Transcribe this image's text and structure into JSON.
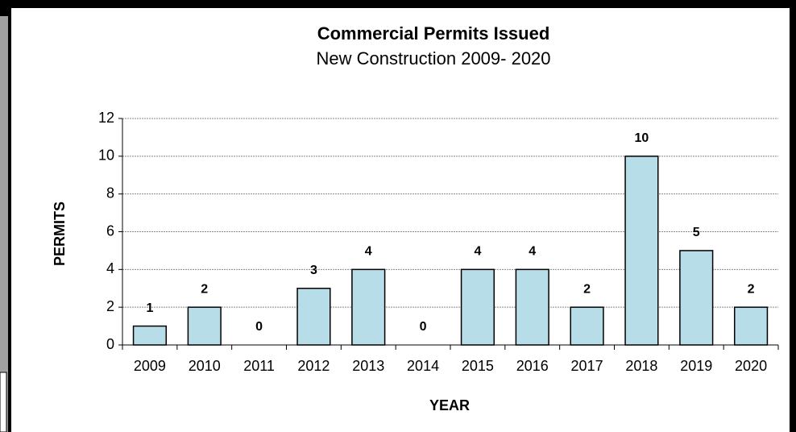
{
  "chart_data": {
    "type": "bar",
    "title": "Commercial Permits Issued",
    "subtitle": "New Construction 2009- 2020",
    "x_label": "YEAR",
    "y_label": "PERMITS",
    "categories": [
      "2009",
      "2010",
      "2011",
      "2012",
      "2013",
      "2014",
      "2015",
      "2016",
      "2017",
      "2018",
      "2019",
      "2020"
    ],
    "values": [
      1,
      2,
      0,
      3,
      4,
      0,
      4,
      4,
      2,
      10,
      5,
      2
    ],
    "color": "#b7dde8",
    "ylim": [
      0,
      12
    ],
    "yticks": [
      0,
      2,
      4,
      6,
      8,
      10,
      12
    ],
    "grid": true
  }
}
